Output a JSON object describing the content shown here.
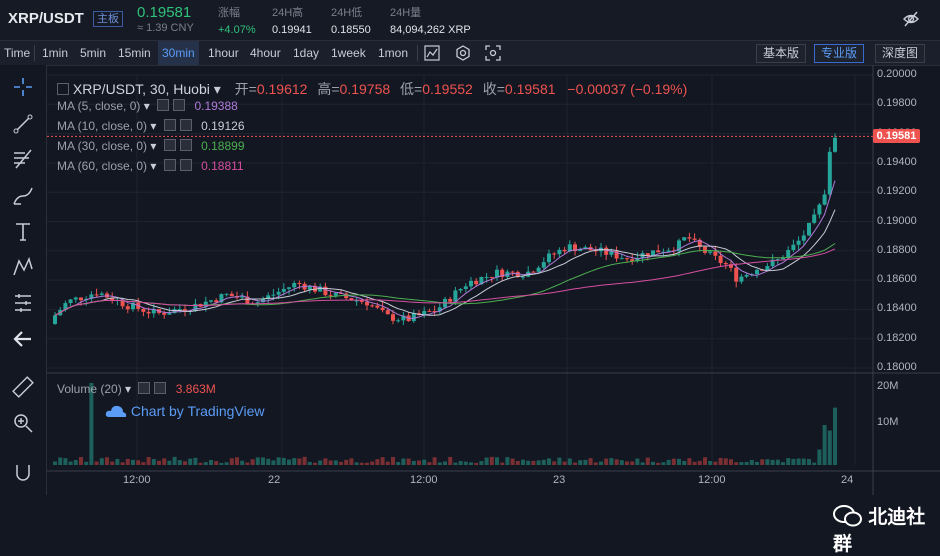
{
  "header": {
    "pair": "XRP/USDT",
    "tag": "主板",
    "price": "0.19581",
    "cny": "≈ 1.39 CNY",
    "stats": [
      {
        "label": "涨幅",
        "value": "+4.07%",
        "color": "green"
      },
      {
        "label": "24H高",
        "value": "0.19941"
      },
      {
        "label": "24H低",
        "value": "0.18550"
      },
      {
        "label": "24H量",
        "value": "84,094,262 XRP"
      }
    ]
  },
  "toolbar": {
    "intervals": [
      "Time",
      "1min",
      "5min",
      "15min",
      "30min",
      "1hour",
      "4hour",
      "1day",
      "1week",
      "1mon"
    ],
    "active": "30min",
    "views": [
      "基本版",
      "专业版",
      "深度图"
    ],
    "active_view": "专业版"
  },
  "chart": {
    "title": "XRP/USDT, 30, Huobi",
    "ohlc": {
      "open_label": "开=",
      "open": "0.19612",
      "high_label": "高=",
      "high": "0.19758",
      "low_label": "低=",
      "low": "0.19552",
      "close_label": "收=",
      "close": "0.19581",
      "change": "−0.00037 (−0.19%)"
    },
    "ma": [
      {
        "label": "MA (5, close, 0)",
        "value": "0.19388",
        "color": "#b07ad8"
      },
      {
        "label": "MA (10, close, 0)",
        "value": "0.19126",
        "color": "#c8ccd6"
      },
      {
        "label": "MA (30, close, 0)",
        "value": "0.18899",
        "color": "#4caf50"
      },
      {
        "label": "MA (60, close, 0)",
        "value": "0.18811",
        "color": "#d64fa0"
      }
    ],
    "volume_label": "Volume (20)",
    "volume_value": "3.863M",
    "last_price_tag": "0.19581",
    "watermark": "Chart by TradingView",
    "price_axis": [
      "0.20000",
      "0.19800",
      "0.19600",
      "0.19400",
      "0.19200",
      "0.19000",
      "0.18800",
      "0.18600",
      "0.18400",
      "0.18200",
      "0.18000"
    ],
    "volume_axis": [
      "20M",
      "10M"
    ],
    "time_axis": [
      "12:00",
      "22",
      "12:00",
      "23",
      "12:00",
      "24"
    ],
    "colors": {
      "up": "#26a69a",
      "down": "#ef5350",
      "bg": "#131722"
    }
  },
  "overlay": {
    "brand": "北迪社群"
  }
}
